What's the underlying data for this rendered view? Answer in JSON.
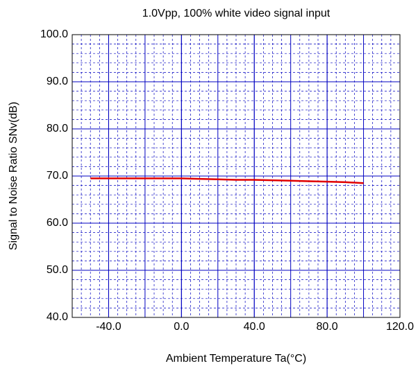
{
  "chart_data": {
    "type": "line",
    "title": "1.0Vpp, 100% white video signal input",
    "x_label": "Ambient Temperature  Ta(°C)",
    "y_label": "Signal to Noise Ratio  SNv(dB)",
    "x": [
      -50,
      -40,
      -20,
      0,
      10,
      20,
      30,
      40,
      50,
      60,
      70,
      80,
      90,
      100
    ],
    "series": [
      {
        "name": "SNv",
        "color": "#e00000",
        "values": [
          69.5,
          69.5,
          69.5,
          69.5,
          69.4,
          69.3,
          69.2,
          69.2,
          69.1,
          69.0,
          68.9,
          68.8,
          68.7,
          68.5
        ]
      }
    ],
    "xlim": [
      -60,
      120
    ],
    "xticks": [
      {
        "value": -40,
        "label": "-40.0"
      },
      {
        "value": 0,
        "label": "0.0"
      },
      {
        "value": 40,
        "label": "40.0"
      },
      {
        "value": 80,
        "label": "80.0"
      },
      {
        "value": 120,
        "label": "120.0"
      }
    ],
    "ylim": [
      40,
      100
    ],
    "yticks": [
      {
        "value": 40,
        "label": "40.0"
      },
      {
        "value": 50,
        "label": "50.0"
      },
      {
        "value": 60,
        "label": "60.0"
      },
      {
        "value": 70,
        "label": "70.0"
      },
      {
        "value": 80,
        "label": "80.0"
      },
      {
        "value": 90,
        "label": "90.0"
      },
      {
        "value": 100,
        "label": "100.0"
      }
    ],
    "grid": true,
    "grid_color": "#0000c0"
  }
}
